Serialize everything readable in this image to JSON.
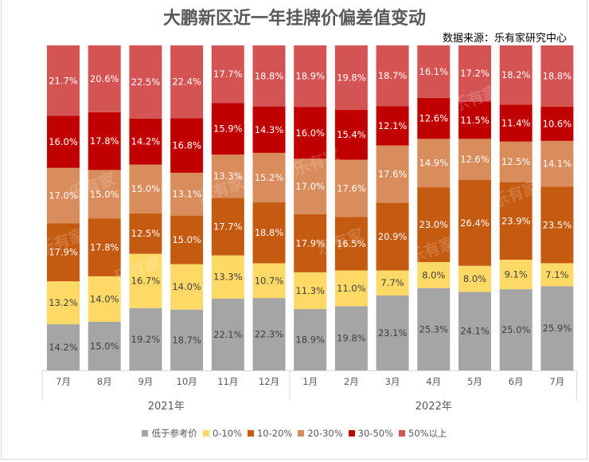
{
  "chart_data": {
    "type": "bar",
    "stacked": true,
    "percent_stacked": true,
    "title": "大鹏新区近一年挂牌价偏差值变动",
    "subtitle": "数据来源：乐有家研究中心",
    "xlabel": "",
    "ylabel": "",
    "ylim": [
      0,
      100
    ],
    "grid": false,
    "legend_position": "bottom",
    "watermark": "乐有家",
    "categories": [
      "7月",
      "8月",
      "9月",
      "10月",
      "11月",
      "12月",
      "1月",
      "2月",
      "3月",
      "4月",
      "5月",
      "6月",
      "7月"
    ],
    "category_groups": [
      {
        "label": "2021年",
        "count": 6
      },
      {
        "label": "2022年",
        "count": 7
      }
    ],
    "series": [
      {
        "name": "低于参考价",
        "color": "#A5A5A5",
        "label_color": "#404040",
        "values": [
          14.2,
          15.0,
          19.2,
          18.7,
          22.1,
          22.3,
          18.9,
          19.8,
          23.1,
          25.3,
          24.1,
          25.0,
          25.9
        ]
      },
      {
        "name": "0-10%",
        "color": "#FFD966",
        "label_color": "#404040",
        "values": [
          13.2,
          14.0,
          16.7,
          14.0,
          13.3,
          10.7,
          11.3,
          11.0,
          7.7,
          8.0,
          8.0,
          9.1,
          7.1
        ]
      },
      {
        "name": "10-20%",
        "color": "#C55A11",
        "label_color": "#ffffff",
        "values": [
          17.9,
          17.8,
          12.5,
          15.0,
          17.7,
          18.8,
          17.9,
          16.5,
          20.9,
          23.0,
          26.4,
          23.9,
          23.5
        ]
      },
      {
        "name": "20-30%",
        "color": "#D98D5C",
        "label_color": "#ffffff",
        "values": [
          17.0,
          15.0,
          15.0,
          13.1,
          13.3,
          15.2,
          17.0,
          17.6,
          17.6,
          14.9,
          12.6,
          12.5,
          14.1
        ]
      },
      {
        "name": "30-50%",
        "color": "#C00000",
        "label_color": "#ffffff",
        "values": [
          16.0,
          17.8,
          14.2,
          16.8,
          15.9,
          14.3,
          16.0,
          15.4,
          12.1,
          12.6,
          11.5,
          11.4,
          10.6
        ]
      },
      {
        "name": "50%以上",
        "color": "#D45454",
        "label_color": "#ffffff",
        "values": [
          21.7,
          20.6,
          22.5,
          22.4,
          17.7,
          18.8,
          18.9,
          19.8,
          18.7,
          16.1,
          17.2,
          18.2,
          18.8
        ]
      }
    ]
  }
}
